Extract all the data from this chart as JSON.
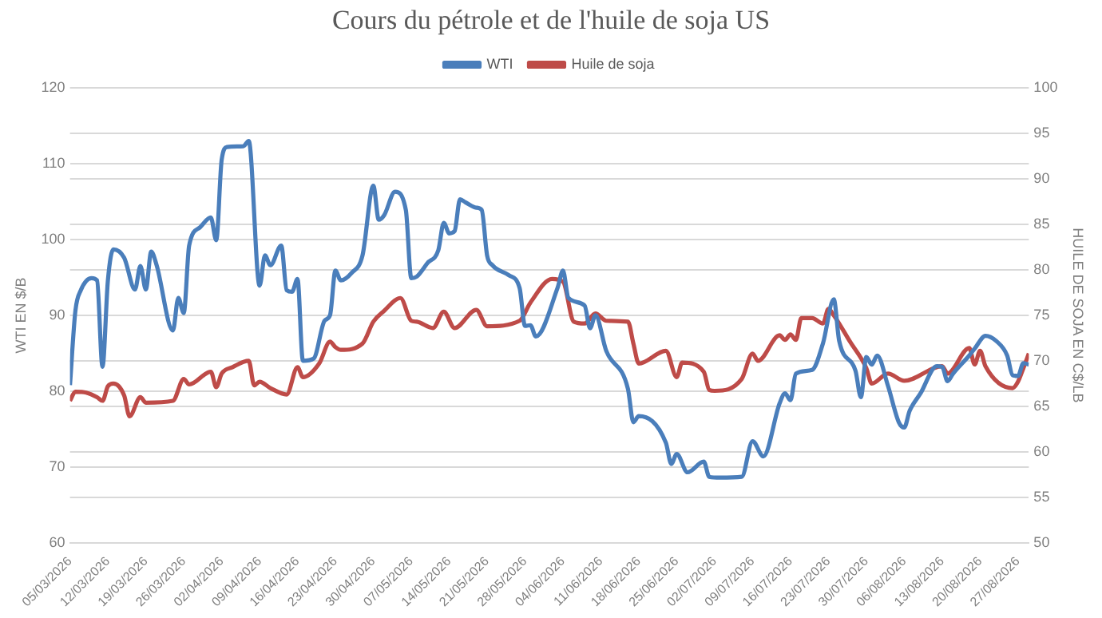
{
  "chart_data": {
    "type": "line",
    "title": "Cours du pétrole et de l'huile de soja US",
    "ylabel": "WTI EN $/B",
    "y2label": "HUILE DE SOJA EN C$/LB",
    "legend": "top",
    "grid": "y",
    "marker": "none",
    "line_style": "solid",
    "xlim": [
      "2026-03-05",
      "2026-08-29"
    ],
    "xticks": [
      {
        "value": "2026-03-05",
        "label": "05/03/2026"
      },
      {
        "value": "2026-03-12",
        "label": "12/03/2026"
      },
      {
        "value": "2026-03-19",
        "label": "19/03/2026"
      },
      {
        "value": "2026-03-26",
        "label": "26/03/2026"
      },
      {
        "value": "2026-04-02",
        "label": "02/04/2026"
      },
      {
        "value": "2026-04-09",
        "label": "09/04/2026"
      },
      {
        "value": "2026-04-16",
        "label": "16/04/2026"
      },
      {
        "value": "2026-04-23",
        "label": "23/04/2026"
      },
      {
        "value": "2026-04-30",
        "label": "30/04/2026"
      },
      {
        "value": "2026-05-07",
        "label": "07/05/2026"
      },
      {
        "value": "2026-05-14",
        "label": "14/05/2026"
      },
      {
        "value": "2026-05-21",
        "label": "21/05/2026"
      },
      {
        "value": "2026-05-28",
        "label": "28/05/2026"
      },
      {
        "value": "2026-06-04",
        "label": "04/06/2026"
      },
      {
        "value": "2026-06-11",
        "label": "11/06/2026"
      },
      {
        "value": "2026-06-18",
        "label": "18/06/2026"
      },
      {
        "value": "2026-06-25",
        "label": "25/06/2026"
      },
      {
        "value": "2026-07-02",
        "label": "02/07/2026"
      },
      {
        "value": "2026-07-09",
        "label": "09/07/2026"
      },
      {
        "value": "2026-07-16",
        "label": "16/07/2026"
      },
      {
        "value": "2026-07-23",
        "label": "23/07/2026"
      },
      {
        "value": "2026-07-30",
        "label": "30/07/2026"
      },
      {
        "value": "2026-08-06",
        "label": "06/08/2026"
      },
      {
        "value": "2026-08-13",
        "label": "13/08/2026"
      },
      {
        "value": "2026-08-20",
        "label": "20/08/2026"
      },
      {
        "value": "2026-08-27",
        "label": "27/08/2026"
      }
    ],
    "ylim": [
      60,
      120
    ],
    "yticks": [
      60,
      70,
      80,
      90,
      100,
      110,
      120
    ],
    "y2lim": [
      50,
      100
    ],
    "y2ticks": [
      50,
      55,
      60,
      65,
      70,
      75,
      80,
      85,
      90,
      95,
      100
    ],
    "series": [
      {
        "name": "WTI",
        "color": "#4a7ebb",
        "axis": "y",
        "x": [
          "2026-03-05",
          "2026-03-06",
          "2026-03-07",
          "2026-03-09",
          "2026-03-10",
          "2026-03-11",
          "2026-03-12",
          "2026-03-13",
          "2026-03-15",
          "2026-03-17",
          "2026-03-18",
          "2026-03-19",
          "2026-03-20",
          "2026-03-21",
          "2026-03-24",
          "2026-03-25",
          "2026-03-26",
          "2026-03-27",
          "2026-03-29",
          "2026-03-31",
          "2026-04-01",
          "2026-04-02",
          "2026-04-03",
          "2026-04-06",
          "2026-04-07",
          "2026-04-09",
          "2026-04-10",
          "2026-04-11",
          "2026-04-13",
          "2026-04-14",
          "2026-04-15",
          "2026-04-16",
          "2026-04-17",
          "2026-04-19",
          "2026-04-21",
          "2026-04-22",
          "2026-04-23",
          "2026-04-24",
          "2026-04-26",
          "2026-04-28",
          "2026-04-30",
          "2026-05-01",
          "2026-05-02",
          "2026-05-04",
          "2026-05-06",
          "2026-05-07",
          "2026-05-08",
          "2026-05-10",
          "2026-05-12",
          "2026-05-13",
          "2026-05-14",
          "2026-05-15",
          "2026-05-16",
          "2026-05-17",
          "2026-05-19",
          "2026-05-20",
          "2026-05-21",
          "2026-05-22",
          "2026-05-25",
          "2026-05-27",
          "2026-05-28",
          "2026-05-29",
          "2026-05-30",
          "2026-06-03",
          "2026-06-04",
          "2026-06-05",
          "2026-06-08",
          "2026-06-09",
          "2026-06-10",
          "2026-06-12",
          "2026-06-16",
          "2026-06-17",
          "2026-06-18",
          "2026-06-23",
          "2026-06-24",
          "2026-06-25",
          "2026-06-27",
          "2026-06-30",
          "2026-07-01",
          "2026-07-03",
          "2026-07-07",
          "2026-07-09",
          "2026-07-11",
          "2026-07-14",
          "2026-07-15",
          "2026-07-16",
          "2026-07-17",
          "2026-07-20",
          "2026-07-22",
          "2026-07-24",
          "2026-07-25",
          "2026-07-28",
          "2026-07-29",
          "2026-07-30",
          "2026-07-31",
          "2026-08-01",
          "2026-08-03",
          "2026-08-05",
          "2026-08-06",
          "2026-08-07",
          "2026-08-09",
          "2026-08-12",
          "2026-08-13",
          "2026-08-14",
          "2026-08-15",
          "2026-08-18",
          "2026-08-19",
          "2026-08-21",
          "2026-08-23",
          "2026-08-25",
          "2026-08-26",
          "2026-08-27",
          "2026-08-28",
          "2026-08-29"
        ],
        "values": [
          80.8,
          90.6,
          93.3,
          94.9,
          94.6,
          83.2,
          94.6,
          98.7,
          97.6,
          93.4,
          96.5,
          93.4,
          98.4,
          96.6,
          88.0,
          92.3,
          90.3,
          99.2,
          101.6,
          102.9,
          99.9,
          110.5,
          112.2,
          112.3,
          113.0,
          93.9,
          97.9,
          96.6,
          99.2,
          93.3,
          93.1,
          94.8,
          84.0,
          84.3,
          89.3,
          90.0,
          95.9,
          94.6,
          95.6,
          97.9,
          107.1,
          102.6,
          103.2,
          106.3,
          103.9,
          94.9,
          95.1,
          96.9,
          98.6,
          102.2,
          100.8,
          101.1,
          105.3,
          104.9,
          104.2,
          103.9,
          97.9,
          96.6,
          95.3,
          93.6,
          88.6,
          88.7,
          87.2,
          93.6,
          95.9,
          92.3,
          91.3,
          88.3,
          90.0,
          85.3,
          80.3,
          75.9,
          76.7,
          73.2,
          70.4,
          71.7,
          69.3,
          70.7,
          68.7,
          68.6,
          68.7,
          73.4,
          71.4,
          78.4,
          79.7,
          78.8,
          82.3,
          82.8,
          86.3,
          92.1,
          86.6,
          82.7,
          79.2,
          84.5,
          83.5,
          84.7,
          80.7,
          75.9,
          75.2,
          77.4,
          79.7,
          83.3,
          83.2,
          81.3,
          82.3,
          84.7,
          85.6,
          87.3,
          86.6,
          84.7,
          82.1,
          82.0,
          83.7,
          83.5
        ]
      },
      {
        "name": "Huile de soja",
        "color": "#be4b48",
        "axis": "y2",
        "x": [
          "2026-03-05",
          "2026-03-06",
          "2026-03-08",
          "2026-03-10",
          "2026-03-11",
          "2026-03-12",
          "2026-03-13",
          "2026-03-15",
          "2026-03-16",
          "2026-03-18",
          "2026-03-19",
          "2026-03-24",
          "2026-03-26",
          "2026-03-27",
          "2026-03-31",
          "2026-04-01",
          "2026-04-02",
          "2026-04-04",
          "2026-04-07",
          "2026-04-08",
          "2026-04-09",
          "2026-04-11",
          "2026-04-14",
          "2026-04-16",
          "2026-04-17",
          "2026-04-20",
          "2026-04-22",
          "2026-04-23",
          "2026-04-24",
          "2026-04-28",
          "2026-04-30",
          "2026-05-02",
          "2026-05-05",
          "2026-05-07",
          "2026-05-08",
          "2026-05-11",
          "2026-05-13",
          "2026-05-15",
          "2026-05-19",
          "2026-05-21",
          "2026-05-27",
          "2026-05-29",
          "2026-06-02",
          "2026-06-04",
          "2026-06-06",
          "2026-06-08",
          "2026-06-10",
          "2026-06-12",
          "2026-06-16",
          "2026-06-17",
          "2026-06-18",
          "2026-06-23",
          "2026-06-25",
          "2026-06-26",
          "2026-06-30",
          "2026-07-01",
          "2026-07-02",
          "2026-07-07",
          "2026-07-09",
          "2026-07-10",
          "2026-07-14",
          "2026-07-15",
          "2026-07-16",
          "2026-07-17",
          "2026-07-18",
          "2026-07-20",
          "2026-07-22",
          "2026-07-23",
          "2026-07-24",
          "2026-07-27",
          "2026-07-30",
          "2026-07-31",
          "2026-08-03",
          "2026-08-06",
          "2026-08-13",
          "2026-08-14",
          "2026-08-18",
          "2026-08-19",
          "2026-08-20",
          "2026-08-21",
          "2026-08-26",
          "2026-08-27",
          "2026-08-28",
          "2026-08-29"
        ],
        "values": [
          65.6,
          66.6,
          66.5,
          66.0,
          65.6,
          67.2,
          67.5,
          66.2,
          63.9,
          66.0,
          65.4,
          65.6,
          68.0,
          67.4,
          68.8,
          67.1,
          68.6,
          69.3,
          70.0,
          67.3,
          67.7,
          67.0,
          66.3,
          69.3,
          68.2,
          69.7,
          72.1,
          71.5,
          71.2,
          71.9,
          74.3,
          75.5,
          76.9,
          74.4,
          74.3,
          73.6,
          75.4,
          73.6,
          75.6,
          73.8,
          74.4,
          76.4,
          79.0,
          78.7,
          74.3,
          74.1,
          75.2,
          74.4,
          74.3,
          71.9,
          69.7,
          71.1,
          68.2,
          69.8,
          68.8,
          66.8,
          66.7,
          68.0,
          70.8,
          70.0,
          72.8,
          72.3,
          72.9,
          72.3,
          74.7,
          74.7,
          74.1,
          75.7,
          75.0,
          72.1,
          69.2,
          67.5,
          68.6,
          67.8,
          69.4,
          68.6,
          71.4,
          69.6,
          71.1,
          69.4,
          67.0,
          67.7,
          69.2,
          70.8
        ]
      }
    ]
  }
}
